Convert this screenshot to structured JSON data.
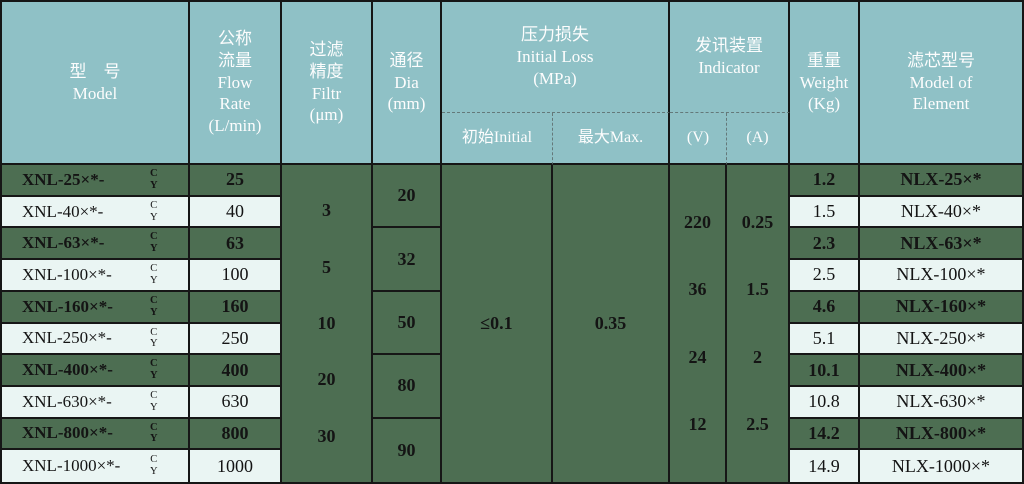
{
  "table": {
    "header": {
      "model": "型　号\nModel",
      "flow": "公称\n流量\nFlow\nRate\n(L/min)",
      "filtr": "过滤\n精度\nFiltr\n(μm)",
      "dia": "通径\nDia\n(mm)",
      "pressure_loss": "压力损失\nInitial Loss\n(MPa)",
      "initial": "初始Initial",
      "max": "最大Max.",
      "indicator": "发讯装置\nIndicator",
      "volt": "(V)",
      "amp": "(A)",
      "weight": "重量\nWeight\n(Kg)",
      "element": "滤芯型号\nModel of\nElement"
    },
    "model_suffix": {
      "top": "C",
      "bottom": "Y"
    },
    "rows": [
      {
        "model": "XNL-25×*-",
        "flow": "25",
        "weight": "1.2",
        "element": "NLX-25×*"
      },
      {
        "model": "XNL-40×*-",
        "flow": "40",
        "weight": "1.5",
        "element": "NLX-40×*"
      },
      {
        "model": "XNL-63×*-",
        "flow": "63",
        "weight": "2.3",
        "element": "NLX-63×*"
      },
      {
        "model": "XNL-100×*-",
        "flow": "100",
        "weight": "2.5",
        "element": "NLX-100×*"
      },
      {
        "model": "XNL-160×*-",
        "flow": "160",
        "weight": "4.6",
        "element": "NLX-160×*"
      },
      {
        "model": "XNL-250×*-",
        "flow": "250",
        "weight": "5.1",
        "element": "NLX-250×*"
      },
      {
        "model": "XNL-400×*-",
        "flow": "400",
        "weight": "10.1",
        "element": "NLX-400×*"
      },
      {
        "model": "XNL-630×*-",
        "flow": "630",
        "weight": "10.8",
        "element": "NLX-630×*"
      },
      {
        "model": "XNL-800×*-",
        "flow": "800",
        "weight": "14.2",
        "element": "NLX-800×*"
      },
      {
        "model": "XNL-1000×*-",
        "flow": "1000",
        "weight": "14.9",
        "element": "NLX-1000×*"
      }
    ],
    "filtr_values": [
      "3",
      "5",
      "10",
      "20",
      "30"
    ],
    "dia_values": [
      "20",
      "32",
      "50",
      "80",
      "90"
    ],
    "initial_value": "≤0.1",
    "max_value": "0.35",
    "volt_values": [
      "220",
      "36",
      "24",
      "12"
    ],
    "amp_values": [
      "0.25",
      "1.5",
      "2",
      "2.5"
    ]
  },
  "colors": {
    "header_bg": "#8fc1c6",
    "dark_row_bg": "#4d6e52",
    "light_row_bg": "#eaf5f3",
    "border": "#161616",
    "header_text": "#fdfdfd",
    "data_text": "#141414"
  }
}
